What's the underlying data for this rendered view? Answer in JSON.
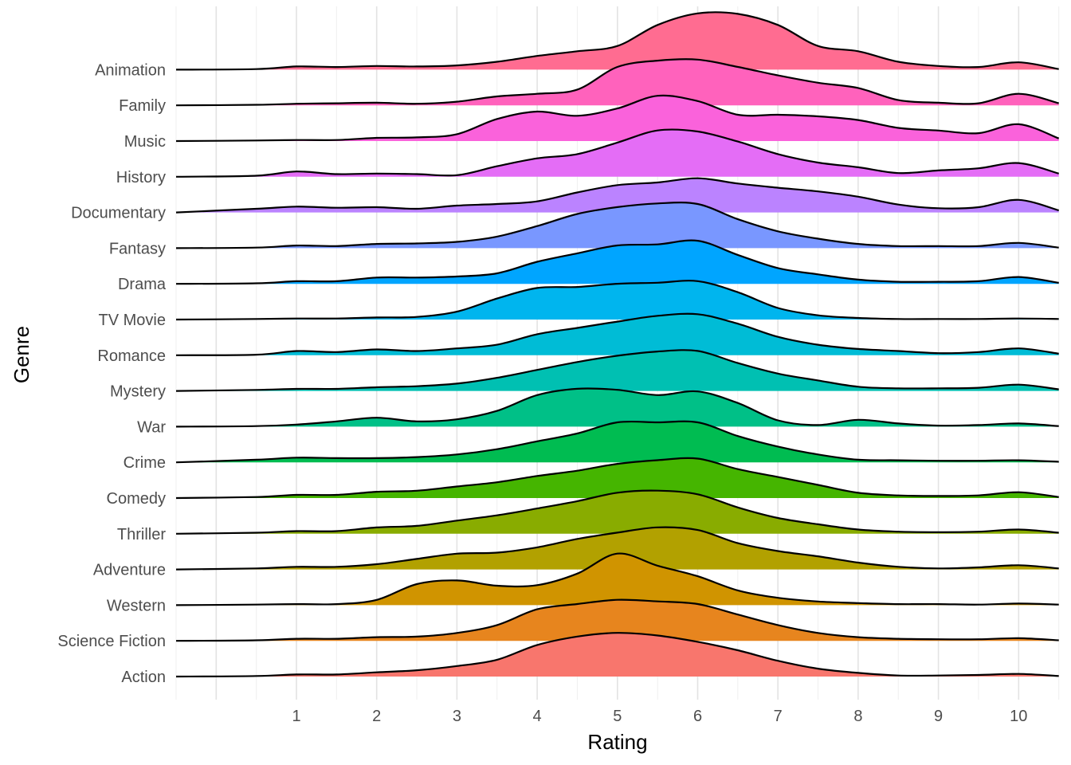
{
  "chart_data": {
    "type": "ridgeline",
    "title": "",
    "xlabel": "Rating",
    "ylabel": "Genre",
    "xlim": [
      -0.5,
      10.5
    ],
    "x_ticks": [
      1,
      2,
      3,
      4,
      5,
      6,
      7,
      8,
      9,
      10
    ],
    "grid": true,
    "legend": "none",
    "density_grid_x": [
      -0.5,
      0.5,
      1,
      1.5,
      2,
      2.5,
      3,
      3.5,
      4,
      4.5,
      5,
      5.5,
      6,
      6.5,
      7,
      7.5,
      8,
      8.5,
      9,
      9.5,
      10,
      10.5
    ],
    "series": [
      {
        "name": "Action",
        "color": "#F8766D",
        "density": [
          0,
          0.01,
          0.04,
          0.04,
          0.08,
          0.12,
          0.2,
          0.32,
          0.6,
          0.76,
          0.83,
          0.78,
          0.66,
          0.5,
          0.3,
          0.15,
          0.07,
          0.02,
          0.02,
          0.03,
          0.05,
          0.01
        ]
      },
      {
        "name": "Science Fiction",
        "color": "#E7851E",
        "density": [
          0,
          0.01,
          0.04,
          0.04,
          0.07,
          0.08,
          0.15,
          0.3,
          0.6,
          0.7,
          0.78,
          0.75,
          0.7,
          0.5,
          0.3,
          0.15,
          0.07,
          0.04,
          0.03,
          0.03,
          0.05,
          0.01
        ]
      },
      {
        "name": "Western",
        "color": "#D09400",
        "density": [
          0,
          0.01,
          0.02,
          0.02,
          0.1,
          0.4,
          0.47,
          0.37,
          0.38,
          0.6,
          0.98,
          0.75,
          0.55,
          0.28,
          0.14,
          0.07,
          0.04,
          0.02,
          0.02,
          0.01,
          0.03,
          0.01
        ]
      },
      {
        "name": "Adventure",
        "color": "#B2A100",
        "density": [
          0,
          0.02,
          0.05,
          0.05,
          0.1,
          0.2,
          0.3,
          0.32,
          0.42,
          0.58,
          0.7,
          0.8,
          0.75,
          0.5,
          0.35,
          0.25,
          0.13,
          0.05,
          0.02,
          0.04,
          0.08,
          0.02
        ]
      },
      {
        "name": "Thriller",
        "color": "#89AC00",
        "density": [
          0,
          0.02,
          0.05,
          0.05,
          0.12,
          0.15,
          0.25,
          0.35,
          0.48,
          0.62,
          0.78,
          0.82,
          0.75,
          0.5,
          0.3,
          0.18,
          0.08,
          0.04,
          0.03,
          0.04,
          0.08,
          0.02
        ]
      },
      {
        "name": "Comedy",
        "color": "#45B500",
        "density": [
          0,
          0.02,
          0.06,
          0.06,
          0.12,
          0.14,
          0.22,
          0.3,
          0.42,
          0.52,
          0.65,
          0.72,
          0.75,
          0.55,
          0.4,
          0.25,
          0.1,
          0.05,
          0.04,
          0.05,
          0.11,
          0.02
        ]
      },
      {
        "name": "Crime",
        "color": "#00BC51",
        "density": [
          0,
          0.05,
          0.09,
          0.08,
          0.08,
          0.1,
          0.15,
          0.25,
          0.4,
          0.55,
          0.76,
          0.76,
          0.76,
          0.5,
          0.3,
          0.15,
          0.05,
          0.04,
          0.03,
          0.03,
          0.04,
          0.01
        ]
      },
      {
        "name": "War",
        "color": "#00C087",
        "density": [
          0,
          0.01,
          0.04,
          0.1,
          0.17,
          0.1,
          0.14,
          0.3,
          0.6,
          0.72,
          0.7,
          0.6,
          0.67,
          0.45,
          0.12,
          0.03,
          0.13,
          0.06,
          0.02,
          0.03,
          0.06,
          0.01
        ]
      },
      {
        "name": "Mystery",
        "color": "#00C0B2",
        "density": [
          0,
          0.02,
          0.04,
          0.04,
          0.07,
          0.09,
          0.14,
          0.25,
          0.4,
          0.55,
          0.67,
          0.75,
          0.76,
          0.53,
          0.33,
          0.2,
          0.08,
          0.05,
          0.05,
          0.06,
          0.12,
          0.03
        ]
      },
      {
        "name": "Romance",
        "color": "#00BCD6",
        "density": [
          0,
          0.01,
          0.08,
          0.06,
          0.11,
          0.08,
          0.13,
          0.2,
          0.4,
          0.52,
          0.64,
          0.75,
          0.78,
          0.6,
          0.35,
          0.2,
          0.12,
          0.08,
          0.04,
          0.06,
          0.13,
          0.03
        ]
      },
      {
        "name": "TV Movie",
        "color": "#00B5EE",
        "density": [
          0,
          0.01,
          0.02,
          0.02,
          0.04,
          0.05,
          0.15,
          0.4,
          0.6,
          0.62,
          0.68,
          0.7,
          0.73,
          0.52,
          0.22,
          0.08,
          0.03,
          0.01,
          0.01,
          0.01,
          0.02,
          0.01
        ]
      },
      {
        "name": "Drama",
        "color": "#00A5FF",
        "density": [
          0,
          0.01,
          0.05,
          0.05,
          0.12,
          0.12,
          0.14,
          0.2,
          0.42,
          0.58,
          0.73,
          0.75,
          0.82,
          0.55,
          0.3,
          0.18,
          0.08,
          0.04,
          0.04,
          0.05,
          0.13,
          0.02
        ]
      },
      {
        "name": "Fantasy",
        "color": "#7997FF",
        "density": [
          0,
          0.01,
          0.05,
          0.04,
          0.08,
          0.09,
          0.12,
          0.22,
          0.42,
          0.65,
          0.78,
          0.85,
          0.84,
          0.55,
          0.32,
          0.18,
          0.08,
          0.04,
          0.04,
          0.04,
          0.1,
          0.01
        ]
      },
      {
        "name": "Documentary",
        "color": "#BB83FF",
        "density": [
          0,
          0.07,
          0.11,
          0.09,
          0.1,
          0.07,
          0.13,
          0.16,
          0.21,
          0.38,
          0.52,
          0.57,
          0.65,
          0.55,
          0.47,
          0.4,
          0.3,
          0.15,
          0.08,
          0.1,
          0.24,
          0.04
        ]
      },
      {
        "name": "History",
        "color": "#E46DF6",
        "density": [
          0,
          0.02,
          0.1,
          0.05,
          0.06,
          0.05,
          0.03,
          0.2,
          0.35,
          0.43,
          0.65,
          0.88,
          0.86,
          0.67,
          0.43,
          0.27,
          0.18,
          0.07,
          0.12,
          0.16,
          0.26,
          0.06
        ]
      },
      {
        "name": "Music",
        "color": "#FA62DB",
        "density": [
          0,
          0.01,
          0.02,
          0.02,
          0.06,
          0.07,
          0.13,
          0.42,
          0.56,
          0.48,
          0.62,
          0.86,
          0.76,
          0.5,
          0.5,
          0.47,
          0.4,
          0.25,
          0.2,
          0.15,
          0.32,
          0.05
        ]
      },
      {
        "name": "Family",
        "color": "#FF62BC",
        "density": [
          0,
          0.01,
          0.03,
          0.04,
          0.05,
          0.03,
          0.07,
          0.17,
          0.22,
          0.3,
          0.73,
          0.85,
          0.87,
          0.73,
          0.57,
          0.43,
          0.33,
          0.1,
          0.05,
          0.04,
          0.22,
          0.04
        ]
      },
      {
        "name": "Animation",
        "color": "#FF6C91",
        "density": [
          0,
          0.01,
          0.06,
          0.05,
          0.07,
          0.06,
          0.08,
          0.15,
          0.26,
          0.35,
          0.45,
          0.85,
          1.07,
          1.06,
          0.85,
          0.45,
          0.35,
          0.15,
          0.07,
          0.05,
          0.14,
          0.01
        ]
      }
    ]
  }
}
